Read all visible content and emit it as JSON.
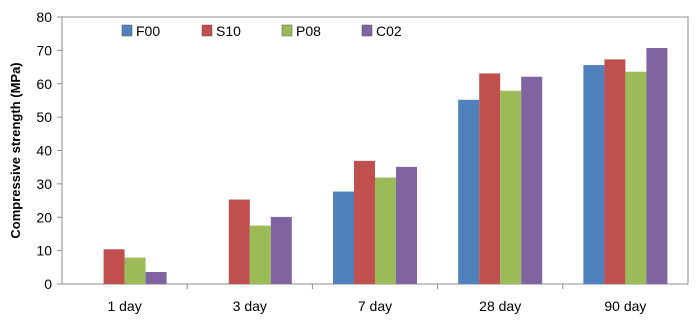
{
  "chart_data": {
    "type": "bar",
    "title": "",
    "xlabel": "",
    "ylabel": "Compressive strength (MPa)",
    "ylim": [
      0,
      80
    ],
    "yticks": [
      0,
      10,
      20,
      30,
      40,
      50,
      60,
      70,
      80
    ],
    "categories": [
      "1 day",
      "3 day",
      "7 day",
      "28 day",
      "90 day"
    ],
    "series": [
      {
        "name": "F00",
        "color": "#4F81BD",
        "values": [
          0,
          0,
          27.7,
          55.2,
          65.6
        ]
      },
      {
        "name": "S10",
        "color": "#C0504D",
        "values": [
          10.4,
          25.3,
          36.9,
          63.1,
          67.3
        ]
      },
      {
        "name": "P08",
        "color": "#9BBB59",
        "values": [
          7.9,
          17.5,
          31.9,
          57.9,
          63.6
        ]
      },
      {
        "name": "C02",
        "color": "#8064A2",
        "values": [
          3.6,
          20.1,
          35.1,
          62.1,
          70.7
        ]
      }
    ],
    "legend_position": "top-left",
    "grid": false
  }
}
